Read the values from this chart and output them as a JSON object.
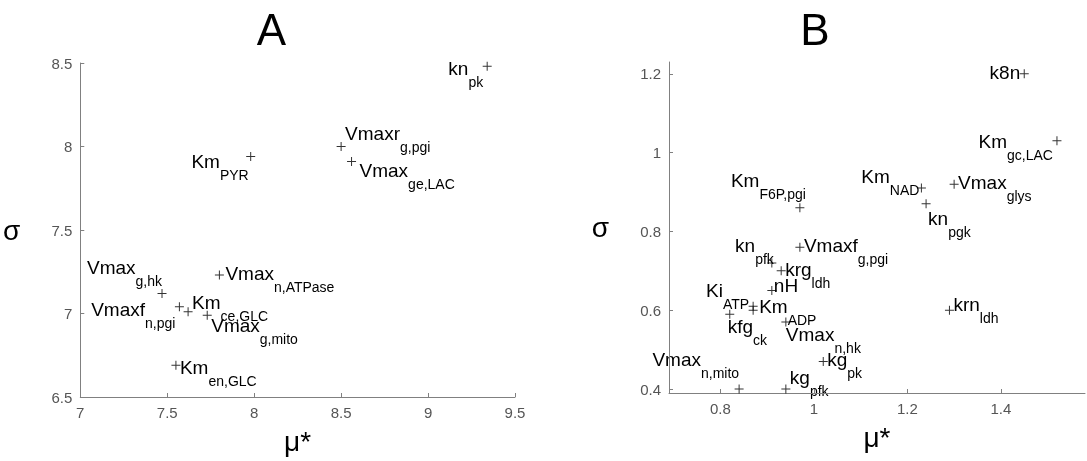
{
  "chart_data": [
    {
      "type": "scatter",
      "title": "A",
      "xlabel": "μ*",
      "ylabel": "σ",
      "marker": "cross",
      "grid": false,
      "color": "#000000",
      "xlim": [
        7,
        9.5
      ],
      "ylim": [
        6.5,
        8.5
      ],
      "xticks": [
        7,
        7.5,
        8,
        8.5,
        9,
        9.5
      ],
      "yticks": [
        6.5,
        7,
        7.5,
        8,
        8.5
      ],
      "x": [
        9.34,
        8.5,
        8.56,
        7.98,
        7.8,
        7.47,
        7.57,
        7.62,
        7.73,
        7.55
      ],
      "values": [
        8.48,
        8.0,
        7.91,
        7.94,
        7.23,
        7.12,
        7.04,
        7.01,
        6.99,
        6.69
      ],
      "annotations": [
        {
          "text": "kn$_{pk}$",
          "x": 9.34,
          "y": 8.48
        },
        {
          "text": "Vmaxr$_{g,pgi}$",
          "x": 8.5,
          "y": 8.0
        },
        {
          "text": "Vmax$_{ge,LAC}$",
          "x": 8.56,
          "y": 7.91
        },
        {
          "text": "Km$_{PYR}$",
          "x": 7.98,
          "y": 7.94
        },
        {
          "text": "Vmax$_{n,ATPase}$",
          "x": 7.8,
          "y": 7.23
        },
        {
          "text": "Vmax$_{g,hk}$",
          "x": 7.47,
          "y": 7.12
        },
        {
          "text": "Vmaxf$_{n,pgi}$",
          "x": 7.57,
          "y": 7.04
        },
        {
          "text": "Km$_{ce,GLC}$",
          "x": 7.62,
          "y": 7.01
        },
        {
          "text": "Vmax$_{g,mito}$",
          "x": 7.73,
          "y": 6.99
        },
        {
          "text": "Km$_{en,GLC}$",
          "x": 7.55,
          "y": 6.69
        }
      ]
    },
    {
      "type": "scatter",
      "title": "B",
      "xlabel": "μ*",
      "ylabel": "σ",
      "marker": "cross",
      "grid": false,
      "color": "#000000",
      "xlim": [
        0.69,
        1.58
      ],
      "ylim": [
        0.39,
        1.23
      ],
      "xticks": [
        0.8,
        1,
        1.2,
        1.4
      ],
      "yticks": [
        0.4,
        0.6,
        0.8,
        1,
        1.2
      ],
      "x": [
        1.45,
        1.52,
        1.23,
        1.3,
        1.24,
        0.97,
        0.97,
        0.91,
        0.93,
        0.91,
        0.87,
        0.87,
        0.82,
        0.94,
        1.29,
        1.02,
        0.84,
        0.94
      ],
      "values": [
        1.2,
        1.03,
        0.91,
        0.92,
        0.87,
        0.86,
        0.76,
        0.72,
        0.7,
        0.65,
        0.6,
        0.61,
        0.59,
        0.57,
        0.6,
        0.47,
        0.4,
        0.4
      ],
      "annotations": [
        {
          "text": "k8n",
          "x": 1.45,
          "y": 1.2
        },
        {
          "text": "Km$_{gc,LAC}$",
          "x": 1.52,
          "y": 1.03
        },
        {
          "text": "Km$_{NAD}$",
          "x": 1.23,
          "y": 0.91
        },
        {
          "text": "Vmax$_{glys}$",
          "x": 1.3,
          "y": 0.92
        },
        {
          "text": "kn$_{pgk}$",
          "x": 1.24,
          "y": 0.87
        },
        {
          "text": "Km$_{F6P,pgi}$",
          "x": 0.97,
          "y": 0.86
        },
        {
          "text": "Vmaxf$_{g,pgi}$",
          "x": 0.97,
          "y": 0.76
        },
        {
          "text": "kn$_{pfk}$",
          "x": 0.91,
          "y": 0.72
        },
        {
          "text": "krg$_{ldh}$",
          "x": 0.93,
          "y": 0.7
        },
        {
          "text": "nH",
          "x": 0.91,
          "y": 0.65
        },
        {
          "text": "Ki$_{ATP}$",
          "x": 0.87,
          "y": 0.6
        },
        {
          "text": "Km$_{ADP}$",
          "x": 0.87,
          "y": 0.61
        },
        {
          "text": "kfg$_{ck}$",
          "x": 0.82,
          "y": 0.59
        },
        {
          "text": "Vmax$_{n,hk}$",
          "x": 0.94,
          "y": 0.57
        },
        {
          "text": "krn$_{ldh}$",
          "x": 1.29,
          "y": 0.6
        },
        {
          "text": "kg$_{pk}$",
          "x": 1.02,
          "y": 0.47
        },
        {
          "text": "Vmax$_{n,mito}$",
          "x": 0.84,
          "y": 0.4
        },
        {
          "text": "kg$_{pfk}$",
          "x": 0.94,
          "y": 0.4
        }
      ]
    }
  ]
}
